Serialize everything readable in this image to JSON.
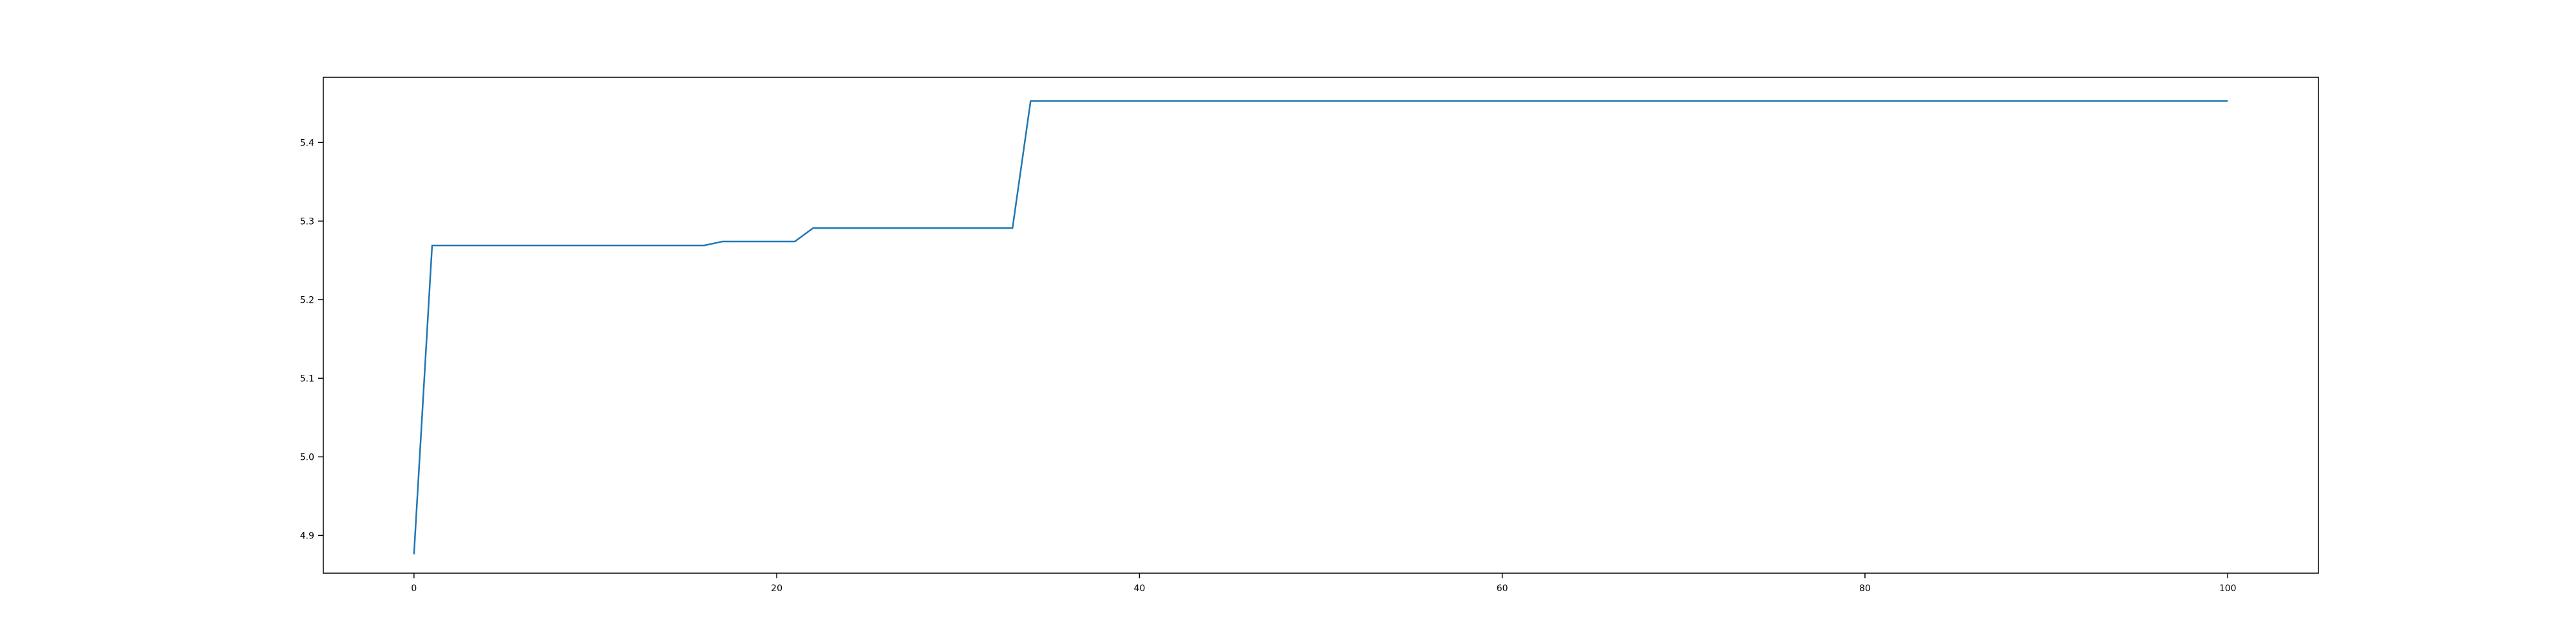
{
  "chart_data": {
    "type": "line",
    "title": "",
    "xlabel": "",
    "ylabel": "",
    "xlim": [
      -5,
      105
    ],
    "ylim": [
      4.852,
      5.483
    ],
    "grid": false,
    "legend": "none",
    "x_ticks": [
      0,
      20,
      40,
      60,
      80,
      100
    ],
    "y_ticks": [
      4.9,
      5.0,
      5.1,
      5.2,
      5.3,
      5.4
    ],
    "x_tick_labels": [
      "0",
      "20",
      "40",
      "60",
      "80",
      "100"
    ],
    "y_tick_labels": [
      "4.9",
      "5.0",
      "5.1",
      "5.2",
      "5.3",
      "5.4"
    ],
    "series": [
      {
        "color": "#1f77b4",
        "x": [
          0,
          1,
          2,
          3,
          4,
          5,
          6,
          7,
          8,
          9,
          10,
          11,
          12,
          13,
          14,
          15,
          16,
          17,
          18,
          19,
          20,
          21,
          22,
          23,
          24,
          25,
          26,
          27,
          28,
          29,
          30,
          31,
          32,
          33,
          34,
          35,
          36,
          37,
          38,
          39,
          40,
          41,
          42,
          43,
          44,
          45,
          46,
          47,
          48,
          49,
          50,
          51,
          52,
          53,
          54,
          55,
          56,
          57,
          58,
          59,
          60,
          61,
          62,
          63,
          64,
          65,
          66,
          67,
          68,
          69,
          70,
          71,
          72,
          73,
          74,
          75,
          76,
          77,
          78,
          79,
          80,
          81,
          82,
          83,
          84,
          85,
          86,
          87,
          88,
          89,
          90,
          91,
          92,
          93,
          94,
          95,
          96,
          97,
          98,
          99,
          100
        ],
        "y": [
          4.876,
          5.269,
          5.269,
          5.269,
          5.269,
          5.269,
          5.269,
          5.269,
          5.269,
          5.269,
          5.269,
          5.269,
          5.269,
          5.269,
          5.269,
          5.269,
          5.269,
          5.274,
          5.274,
          5.274,
          5.274,
          5.274,
          5.291,
          5.291,
          5.291,
          5.291,
          5.291,
          5.291,
          5.291,
          5.291,
          5.291,
          5.291,
          5.291,
          5.291,
          5.453,
          5.453,
          5.453,
          5.453,
          5.453,
          5.453,
          5.453,
          5.453,
          5.453,
          5.453,
          5.453,
          5.453,
          5.453,
          5.453,
          5.453,
          5.453,
          5.453,
          5.453,
          5.453,
          5.453,
          5.453,
          5.453,
          5.453,
          5.453,
          5.453,
          5.453,
          5.453,
          5.453,
          5.453,
          5.453,
          5.453,
          5.453,
          5.453,
          5.453,
          5.453,
          5.453,
          5.453,
          5.453,
          5.453,
          5.453,
          5.453,
          5.453,
          5.453,
          5.453,
          5.453,
          5.453,
          5.453,
          5.453,
          5.453,
          5.453,
          5.453,
          5.453,
          5.453,
          5.453,
          5.453,
          5.453,
          5.453,
          5.453,
          5.453,
          5.453,
          5.453,
          5.453,
          5.453,
          5.453,
          5.453,
          5.453,
          5.453
        ]
      }
    ]
  }
}
